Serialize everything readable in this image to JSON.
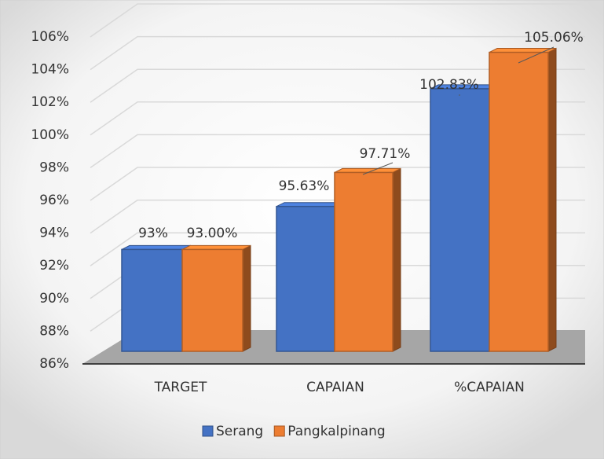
{
  "chart_data": {
    "type": "bar3d",
    "categories": [
      "TARGET",
      "CAPAIAN",
      "%CAPAIAN"
    ],
    "series": [
      {
        "name": "Serang",
        "color": "#4472c4",
        "values": [
          93,
          95.63,
          102.83
        ],
        "value_labels": [
          "93%",
          "95.63%",
          "102.83%"
        ]
      },
      {
        "name": "Pangkalpinang",
        "color": "#ed7d31",
        "values": [
          93,
          97.71,
          105.06
        ],
        "value_labels": [
          "93.00%",
          "97.71%",
          "105.06%"
        ]
      }
    ],
    "ylim": [
      86,
      106
    ],
    "yticks": [
      {
        "value": 86,
        "label": "86%"
      },
      {
        "value": 88,
        "label": "88%"
      },
      {
        "value": 90,
        "label": "90%"
      },
      {
        "value": 92,
        "label": "92%"
      },
      {
        "value": 94,
        "label": "94%"
      },
      {
        "value": 96,
        "label": "96%"
      },
      {
        "value": 98,
        "label": "98%"
      },
      {
        "value": 100,
        "label": "100%"
      },
      {
        "value": 102,
        "label": "102%"
      },
      {
        "value": 104,
        "label": "104%"
      },
      {
        "value": 106,
        "label": "106%"
      }
    ],
    "grid": true,
    "legend": "bottom"
  }
}
